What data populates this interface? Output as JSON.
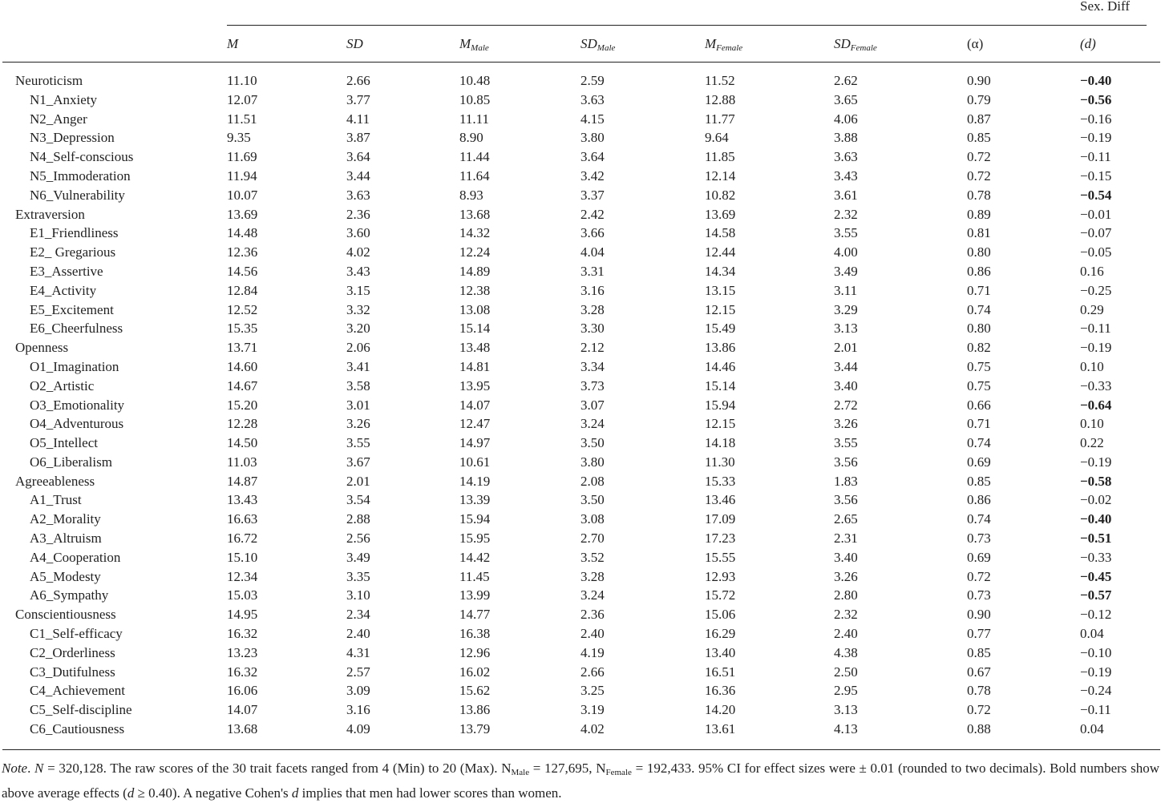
{
  "table": {
    "group_header": "Sex. Diff",
    "columns": [
      {
        "main": "M",
        "italic": true
      },
      {
        "main": "SD",
        "italic": true
      },
      {
        "main": "M",
        "sub": "Male",
        "italic": true
      },
      {
        "main": "SD",
        "sub": "Male",
        "italic": true
      },
      {
        "main": "M",
        "sub": "Female",
        "italic": true
      },
      {
        "main": "SD",
        "sub": "Female",
        "italic": true
      },
      {
        "main": "(α)",
        "italic": false
      },
      {
        "main": "(d)",
        "italic": true
      }
    ],
    "rows": [
      {
        "cells": [
          "Neuroticism",
          "11.10",
          "2.66",
          "10.48",
          "2.59",
          "11.52",
          "2.62",
          "0.90",
          "−0.40"
        ],
        "bold_d": true
      },
      {
        "cells": [
          "N1_Anxiety",
          "12.07",
          "3.77",
          "10.85",
          "3.63",
          "12.88",
          "3.65",
          "0.79",
          "−0.56"
        ],
        "bold_d": true
      },
      {
        "cells": [
          "N2_Anger",
          "11.51",
          "4.11",
          "11.11",
          "4.15",
          "11.77",
          "4.06",
          "0.87",
          "−0.16"
        ],
        "bold_d": false
      },
      {
        "cells": [
          "N3_Depression",
          "9.35",
          "3.87",
          "8.90",
          "3.80",
          "9.64",
          "3.88",
          "0.85",
          "−0.19"
        ],
        "bold_d": false
      },
      {
        "cells": [
          "N4_Self-conscious",
          "11.69",
          "3.64",
          "11.44",
          "3.64",
          "11.85",
          "3.63",
          "0.72",
          "−0.11"
        ],
        "bold_d": false
      },
      {
        "cells": [
          "N5_Immoderation",
          "11.94",
          "3.44",
          "11.64",
          "3.42",
          "12.14",
          "3.43",
          "0.72",
          "−0.15"
        ],
        "bold_d": false
      },
      {
        "cells": [
          "N6_Vulnerability",
          "10.07",
          "3.63",
          "8.93",
          "3.37",
          "10.82",
          "3.61",
          "0.78",
          "−0.54"
        ],
        "bold_d": true
      },
      {
        "cells": [
          "Extraversion",
          "13.69",
          "2.36",
          "13.68",
          "2.42",
          "13.69",
          "2.32",
          "0.89",
          "−0.01"
        ],
        "bold_d": false
      },
      {
        "cells": [
          "E1_Friendliness",
          "14.48",
          "3.60",
          "14.32",
          "3.66",
          "14.58",
          "3.55",
          "0.81",
          "−0.07"
        ],
        "bold_d": false
      },
      {
        "cells": [
          "E2_ Gregarious",
          "12.36",
          "4.02",
          "12.24",
          "4.04",
          "12.44",
          "4.00",
          "0.80",
          "−0.05"
        ],
        "bold_d": false
      },
      {
        "cells": [
          "E3_Assertive",
          "14.56",
          "3.43",
          "14.89",
          "3.31",
          "14.34",
          "3.49",
          "0.86",
          "0.16"
        ],
        "bold_d": false
      },
      {
        "cells": [
          "E4_Activity",
          "12.84",
          "3.15",
          "12.38",
          "3.16",
          "13.15",
          "3.11",
          "0.71",
          "−0.25"
        ],
        "bold_d": false
      },
      {
        "cells": [
          "E5_Excitement",
          "12.52",
          "3.32",
          "13.08",
          "3.28",
          "12.15",
          "3.29",
          "0.74",
          "0.29"
        ],
        "bold_d": false
      },
      {
        "cells": [
          "E6_Cheerfulness",
          "15.35",
          "3.20",
          "15.14",
          "3.30",
          "15.49",
          "3.13",
          "0.80",
          "−0.11"
        ],
        "bold_d": false
      },
      {
        "cells": [
          "Openness",
          "13.71",
          "2.06",
          "13.48",
          "2.12",
          "13.86",
          "2.01",
          "0.82",
          "−0.19"
        ],
        "bold_d": false
      },
      {
        "cells": [
          "O1_Imagination",
          "14.60",
          "3.41",
          "14.81",
          "3.34",
          "14.46",
          "3.44",
          "0.75",
          "0.10"
        ],
        "bold_d": false
      },
      {
        "cells": [
          "O2_Artistic",
          "14.67",
          "3.58",
          "13.95",
          "3.73",
          "15.14",
          "3.40",
          "0.75",
          "−0.33"
        ],
        "bold_d": false
      },
      {
        "cells": [
          "O3_Emotionality",
          "15.20",
          "3.01",
          "14.07",
          "3.07",
          "15.94",
          "2.72",
          "0.66",
          "−0.64"
        ],
        "bold_d": true
      },
      {
        "cells": [
          "O4_Adventurous",
          "12.28",
          "3.26",
          "12.47",
          "3.24",
          "12.15",
          "3.26",
          "0.71",
          "0.10"
        ],
        "bold_d": false
      },
      {
        "cells": [
          "O5_Intellect",
          "14.50",
          "3.55",
          "14.97",
          "3.50",
          "14.18",
          "3.55",
          "0.74",
          "0.22"
        ],
        "bold_d": false
      },
      {
        "cells": [
          "O6_Liberalism",
          "11.03",
          "3.67",
          "10.61",
          "3.80",
          "11.30",
          "3.56",
          "0.69",
          "−0.19"
        ],
        "bold_d": false
      },
      {
        "cells": [
          "Agreeableness",
          "14.87",
          "2.01",
          "14.19",
          "2.08",
          "15.33",
          "1.83",
          "0.85",
          "−0.58"
        ],
        "bold_d": true
      },
      {
        "cells": [
          "A1_Trust",
          "13.43",
          "3.54",
          "13.39",
          "3.50",
          "13.46",
          "3.56",
          "0.86",
          "−0.02"
        ],
        "bold_d": false
      },
      {
        "cells": [
          "A2_Morality",
          "16.63",
          "2.88",
          "15.94",
          "3.08",
          "17.09",
          "2.65",
          "0.74",
          "−0.40"
        ],
        "bold_d": true
      },
      {
        "cells": [
          "A3_Altruism",
          "16.72",
          "2.56",
          "15.95",
          "2.70",
          "17.23",
          "2.31",
          "0.73",
          "−0.51"
        ],
        "bold_d": true
      },
      {
        "cells": [
          "A4_Cooperation",
          "15.10",
          "3.49",
          "14.42",
          "3.52",
          "15.55",
          "3.40",
          "0.69",
          "−0.33"
        ],
        "bold_d": false
      },
      {
        "cells": [
          "A5_Modesty",
          "12.34",
          "3.35",
          "11.45",
          "3.28",
          "12.93",
          "3.26",
          "0.72",
          "−0.45"
        ],
        "bold_d": true
      },
      {
        "cells": [
          "A6_Sympathy",
          "15.03",
          "3.10",
          "13.99",
          "3.24",
          "15.72",
          "2.80",
          "0.73",
          "−0.57"
        ],
        "bold_d": true
      },
      {
        "cells": [
          "Conscientiousness",
          "14.95",
          "2.34",
          "14.77",
          "2.36",
          "15.06",
          "2.32",
          "0.90",
          "−0.12"
        ],
        "bold_d": false
      },
      {
        "cells": [
          "C1_Self-efficacy",
          "16.32",
          "2.40",
          "16.38",
          "2.40",
          "16.29",
          "2.40",
          "0.77",
          "0.04"
        ],
        "bold_d": false
      },
      {
        "cells": [
          "C2_Orderliness",
          "13.23",
          "4.31",
          "12.96",
          "4.19",
          "13.40",
          "4.38",
          "0.85",
          "−0.10"
        ],
        "bold_d": false
      },
      {
        "cells": [
          "C3_Dutifulness",
          "16.32",
          "2.57",
          "16.02",
          "2.66",
          "16.51",
          "2.50",
          "0.67",
          "−0.19"
        ],
        "bold_d": false
      },
      {
        "cells": [
          "C4_Achievement",
          "16.06",
          "3.09",
          "15.62",
          "3.25",
          "16.36",
          "2.95",
          "0.78",
          "−0.24"
        ],
        "bold_d": false
      },
      {
        "cells": [
          "C5_Self-discipline",
          "14.07",
          "3.16",
          "13.86",
          "3.19",
          "14.20",
          "3.13",
          "0.72",
          "−0.11"
        ],
        "bold_d": false
      },
      {
        "cells": [
          "C6_Cautiousness",
          "13.68",
          "4.09",
          "13.79",
          "4.02",
          "13.61",
          "4.13",
          "0.88",
          "0.04"
        ],
        "bold_d": false
      }
    ]
  },
  "note": [
    {
      "text": "Note",
      "style": "italic"
    },
    {
      "text": ". ",
      "style": "normal"
    },
    {
      "text": "N",
      "style": "italic"
    },
    {
      "text": " = 320,128. The raw scores of the 30 trait facets ranged from 4 (Min) to 20 (Max). N",
      "style": "normal"
    },
    {
      "text": "Male",
      "style": "sub"
    },
    {
      "text": " = 127,695, N",
      "style": "normal"
    },
    {
      "text": "Female",
      "style": "sub"
    },
    {
      "text": " = 192,433. 95% CI for effect sizes were ± 0.01 (rounded to two decimals). Bold numbers show above average effects (",
      "style": "normal"
    },
    {
      "text": "d",
      "style": "italic"
    },
    {
      "text": " ≥ 0.40). A negative Cohen's ",
      "style": "normal"
    },
    {
      "text": "d",
      "style": "italic"
    },
    {
      "text": " implies that men had lower scores than women.",
      "style": "normal"
    }
  ]
}
